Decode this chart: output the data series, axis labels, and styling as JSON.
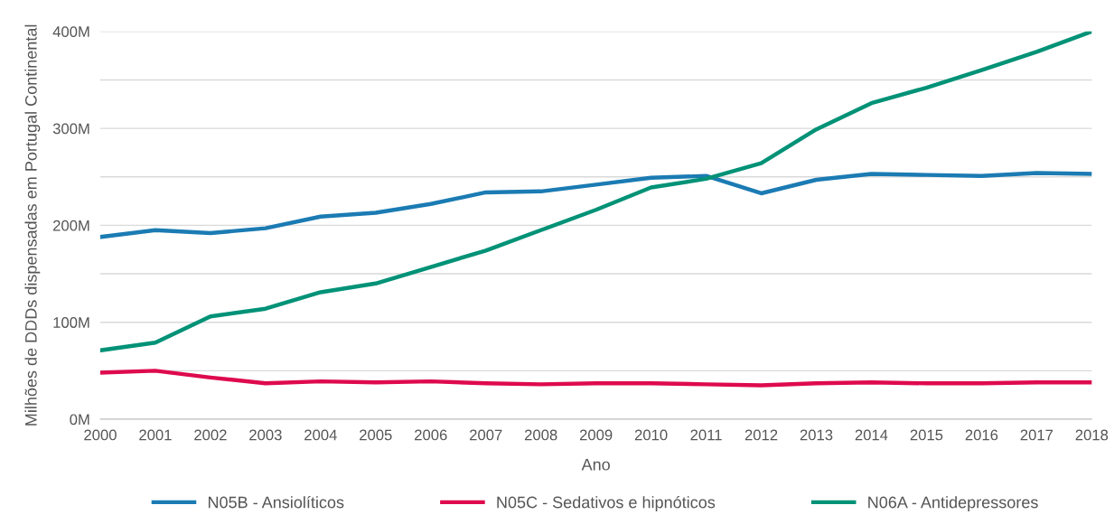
{
  "chart_data": {
    "type": "line",
    "xlabel": "Ano",
    "ylabel": "Milhões de DDDs dispensadas em Portugal Continental",
    "x": [
      2000,
      2001,
      2002,
      2003,
      2004,
      2005,
      2006,
      2007,
      2008,
      2009,
      2010,
      2011,
      2012,
      2013,
      2014,
      2015,
      2016,
      2017,
      2018
    ],
    "series": [
      {
        "name": "N05B - Ansiolíticos",
        "color": "#1b7bb3",
        "values": [
          188,
          195,
          192,
          197,
          209,
          213,
          222,
          234,
          235,
          242,
          249,
          251,
          233,
          247,
          253,
          252,
          251,
          254,
          253
        ]
      },
      {
        "name": "N05C - Sedativos e hipnóticos",
        "color": "#de0a4e",
        "values": [
          48,
          50,
          43,
          37,
          39,
          38,
          39,
          37,
          36,
          37,
          37,
          36,
          35,
          37,
          38,
          37,
          37,
          38,
          38
        ]
      },
      {
        "name": "N06A - Antidepressores",
        "color": "#009277",
        "values": [
          71,
          79,
          106,
          114,
          131,
          140,
          157,
          174,
          195,
          216,
          239,
          248,
          264,
          299,
          326,
          342,
          360,
          379,
          400
        ]
      }
    ],
    "xlim": [
      2000,
      2018
    ],
    "xticks": [
      2000,
      2001,
      2002,
      2003,
      2004,
      2005,
      2006,
      2007,
      2008,
      2009,
      2010,
      2011,
      2012,
      2013,
      2014,
      2015,
      2016,
      2017,
      2018
    ],
    "ylim": [
      0,
      400
    ],
    "yticks": [
      {
        "value": 0,
        "label": "0M"
      },
      {
        "value": 50,
        "label": null
      },
      {
        "value": 100,
        "label": "100M"
      },
      {
        "value": 150,
        "label": null
      },
      {
        "value": 200,
        "label": "200M"
      },
      {
        "value": 250,
        "label": null
      },
      {
        "value": 300,
        "label": "300M"
      },
      {
        "value": 350,
        "label": null
      },
      {
        "value": 400,
        "label": "400M"
      }
    ],
    "grid": "y",
    "legend": "bottom",
    "marker": "none",
    "line_style": "solid"
  }
}
